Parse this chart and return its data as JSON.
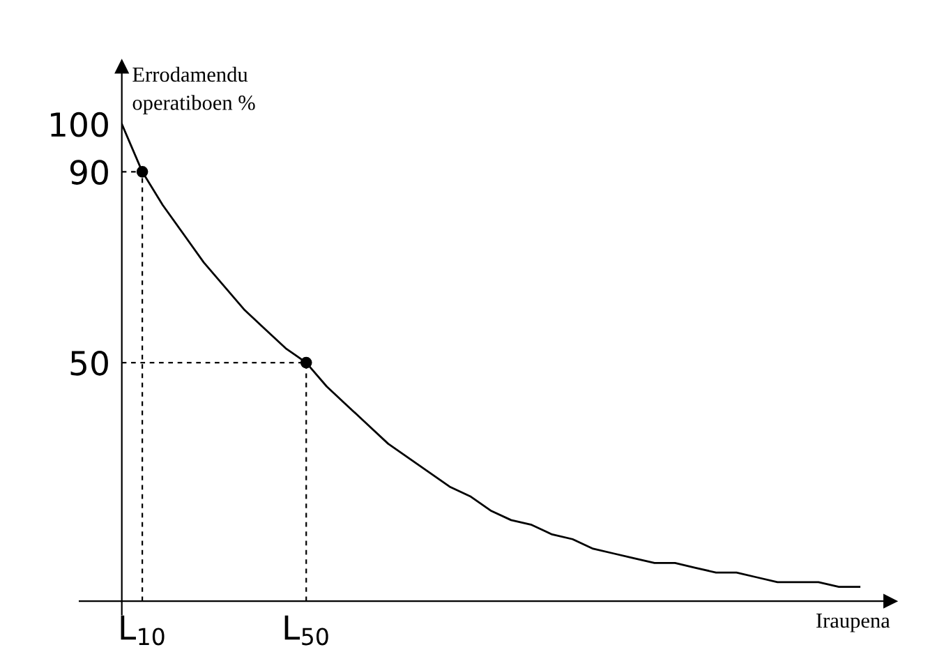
{
  "chart_data": {
    "type": "line",
    "xlabel": "Iraupena",
    "ylabel": "Errodamendu\noperatiboen %",
    "categories": [
      null,
      "L$_{10}$",
      null,
      null,
      null,
      null,
      null,
      null,
      null,
      "L$_{50}$",
      null,
      null,
      null,
      null,
      null,
      null,
      null,
      null,
      null,
      null,
      null,
      null,
      null,
      null,
      null,
      null,
      null,
      null,
      null,
      null,
      null,
      null,
      null,
      null,
      null,
      null,
      null
    ],
    "series": [
      {
        "color": "#000000",
        "marker": "none",
        "line_style": "solid",
        "values": [
          100,
          90,
          83,
          77,
          71,
          66,
          61,
          57,
          53,
          50,
          45,
          41,
          37,
          33,
          30,
          27,
          24,
          22,
          19,
          17,
          16,
          14,
          13,
          11,
          10,
          9,
          8,
          8,
          7,
          6,
          6,
          5,
          4,
          4,
          4,
          3,
          3
        ]
      },
      {
        "color": "#000000",
        "marker": "none",
        "line_style": "dashed",
        "values": [
          90,
          90,
          null,
          null,
          null,
          null,
          null,
          null,
          null,
          null,
          null,
          null,
          null,
          null,
          null,
          null,
          null,
          null,
          null,
          null,
          null,
          null,
          null,
          null,
          null,
          null,
          null,
          null,
          null,
          null,
          null,
          null,
          null,
          null,
          null,
          null,
          null
        ]
      },
      {
        "color": "#000000",
        "marker": "none",
        "line_style": "dashed",
        "values": [
          50,
          50,
          50,
          50,
          50,
          50,
          50,
          50,
          50,
          50,
          null,
          null,
          null,
          null,
          null,
          null,
          null,
          null,
          null,
          null,
          null,
          null,
          null,
          null,
          null,
          null,
          null,
          null,
          null,
          null,
          null,
          null,
          null,
          null,
          null,
          null,
          null
        ]
      },
      {
        "type": "lollipop",
        "color": "#000000",
        "marker": "circle",
        "line_style": "dashed",
        "values": [
          null,
          90,
          null,
          null,
          null,
          null,
          null,
          null,
          null,
          50,
          null,
          null,
          null,
          null,
          null,
          null,
          null,
          null,
          null,
          null,
          null,
          null,
          null,
          null,
          null,
          null,
          null,
          null,
          null,
          null,
          null,
          null,
          null,
          null,
          null,
          null,
          null
        ]
      }
    ],
    "ylim": [
      0,
      112
    ],
    "yticks": [
      50,
      90,
      100
    ]
  }
}
